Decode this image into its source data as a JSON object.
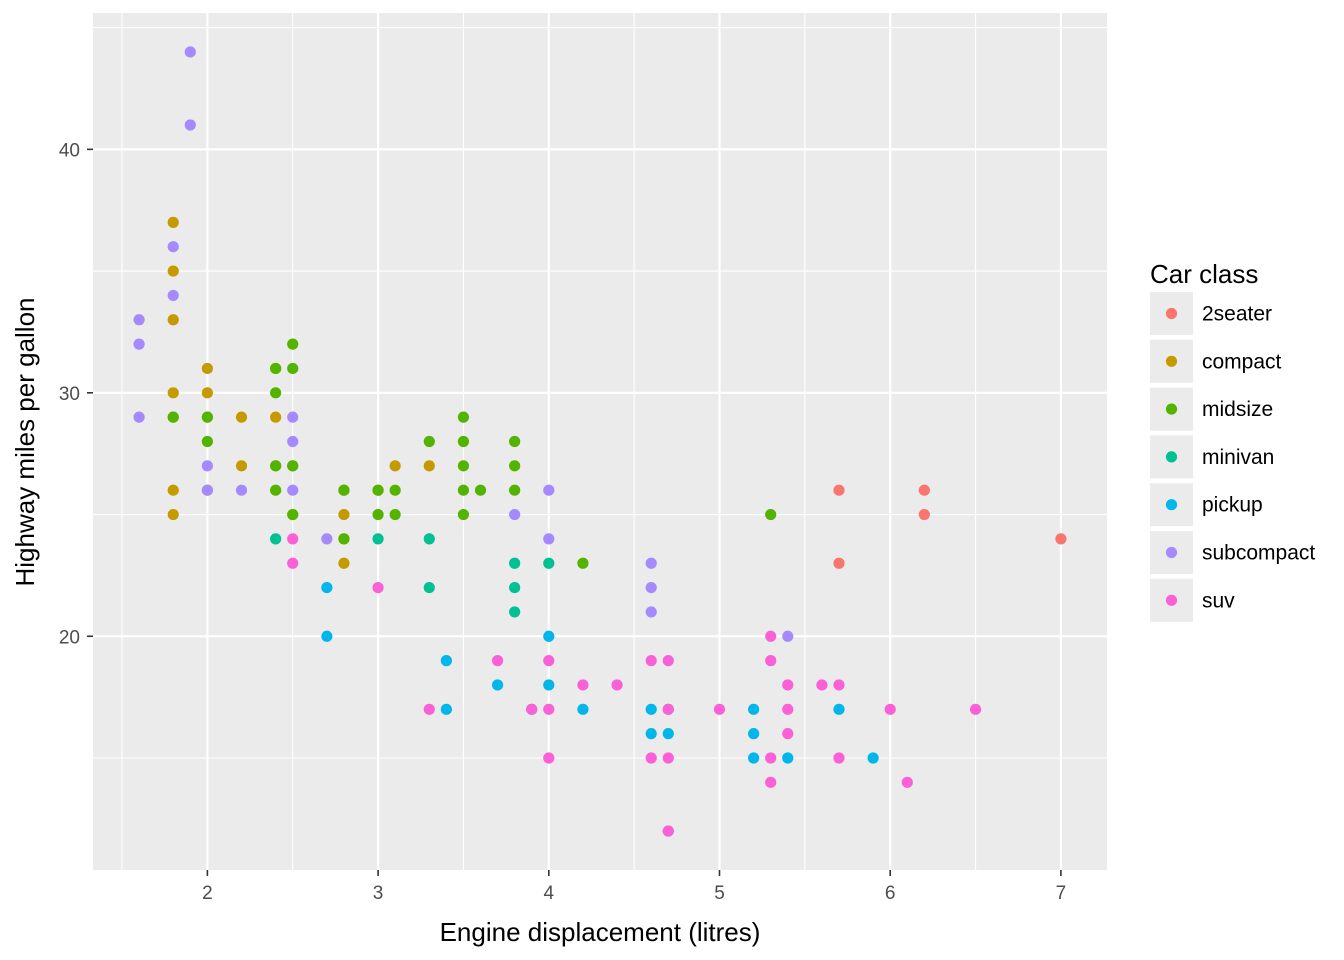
{
  "chart_data": {
    "type": "scatter",
    "xlabel": "Engine displacement (litres)",
    "ylabel": "Highway miles per gallon",
    "xlim": [
      1.33,
      7.27
    ],
    "ylim": [
      10.4,
      45.6
    ],
    "x_ticks": [
      "2",
      "3",
      "4",
      "5",
      "6",
      "7"
    ],
    "y_ticks": [
      "20",
      "30",
      "40"
    ],
    "grid": true,
    "legend": {
      "title": "Car class",
      "position": "right"
    },
    "series": [
      {
        "name": "2seater",
        "color": "#F8766D",
        "points": [
          [
            5.7,
            26
          ],
          [
            5.7,
            23
          ],
          [
            6.2,
            26
          ],
          [
            6.2,
            25
          ],
          [
            7.0,
            24
          ]
        ]
      },
      {
        "name": "compact",
        "color": "#C49A00",
        "points": [
          [
            1.8,
            37
          ],
          [
            1.8,
            35
          ],
          [
            1.8,
            33
          ],
          [
            1.8,
            30
          ],
          [
            1.8,
            29
          ],
          [
            1.8,
            26
          ],
          [
            1.8,
            25
          ],
          [
            2.0,
            31
          ],
          [
            2.0,
            30
          ],
          [
            2.0,
            29
          ],
          [
            2.0,
            26
          ],
          [
            2.2,
            29
          ],
          [
            2.2,
            27
          ],
          [
            2.4,
            31
          ],
          [
            2.4,
            29
          ],
          [
            2.4,
            27
          ],
          [
            2.5,
            27
          ],
          [
            2.5,
            25
          ],
          [
            2.8,
            26
          ],
          [
            2.8,
            25
          ],
          [
            2.8,
            24
          ],
          [
            2.8,
            23
          ],
          [
            3.0,
            26
          ],
          [
            3.1,
            27
          ],
          [
            3.3,
            27
          ]
        ]
      },
      {
        "name": "midsize",
        "color": "#53B400",
        "points": [
          [
            1.8,
            29
          ],
          [
            2.0,
            29
          ],
          [
            2.0,
            28
          ],
          [
            2.4,
            31
          ],
          [
            2.4,
            30
          ],
          [
            2.4,
            27
          ],
          [
            2.4,
            26
          ],
          [
            2.5,
            32
          ],
          [
            2.5,
            31
          ],
          [
            2.5,
            27
          ],
          [
            2.5,
            25
          ],
          [
            2.8,
            26
          ],
          [
            2.8,
            24
          ],
          [
            3.0,
            26
          ],
          [
            3.0,
            25
          ],
          [
            3.1,
            26
          ],
          [
            3.1,
            25
          ],
          [
            3.3,
            28
          ],
          [
            3.5,
            29
          ],
          [
            3.5,
            28
          ],
          [
            3.5,
            27
          ],
          [
            3.5,
            26
          ],
          [
            3.5,
            25
          ],
          [
            3.6,
            26
          ],
          [
            3.8,
            28
          ],
          [
            3.8,
            27
          ],
          [
            3.8,
            26
          ],
          [
            4.2,
            23
          ],
          [
            5.3,
            25
          ]
        ]
      },
      {
        "name": "minivan",
        "color": "#00C094",
        "points": [
          [
            2.4,
            24
          ],
          [
            3.0,
            24
          ],
          [
            3.3,
            24
          ],
          [
            3.3,
            22
          ],
          [
            3.8,
            23
          ],
          [
            3.8,
            22
          ],
          [
            3.8,
            21
          ],
          [
            4.0,
            23
          ]
        ]
      },
      {
        "name": "pickup",
        "color": "#00B6EB",
        "points": [
          [
            2.7,
            22
          ],
          [
            2.7,
            20
          ],
          [
            3.4,
            19
          ],
          [
            3.4,
            17
          ],
          [
            3.7,
            18
          ],
          [
            3.9,
            17
          ],
          [
            4.0,
            20
          ],
          [
            4.0,
            18
          ],
          [
            4.2,
            17
          ],
          [
            4.6,
            17
          ],
          [
            4.6,
            16
          ],
          [
            4.7,
            17
          ],
          [
            4.7,
            16
          ],
          [
            4.7,
            12
          ],
          [
            5.2,
            17
          ],
          [
            5.2,
            16
          ],
          [
            5.2,
            15
          ],
          [
            5.7,
            17
          ],
          [
            5.9,
            15
          ],
          [
            5.4,
            15
          ]
        ]
      },
      {
        "name": "subcompact",
        "color": "#A58AFF",
        "points": [
          [
            1.6,
            33
          ],
          [
            1.6,
            32
          ],
          [
            1.6,
            29
          ],
          [
            1.8,
            36
          ],
          [
            1.8,
            34
          ],
          [
            1.9,
            44
          ],
          [
            1.9,
            41
          ],
          [
            2.0,
            27
          ],
          [
            2.0,
            26
          ],
          [
            2.2,
            26
          ],
          [
            2.5,
            29
          ],
          [
            2.5,
            28
          ],
          [
            2.5,
            26
          ],
          [
            2.7,
            24
          ],
          [
            3.8,
            25
          ],
          [
            4.0,
            26
          ],
          [
            4.0,
            24
          ],
          [
            4.6,
            23
          ],
          [
            4.6,
            22
          ],
          [
            4.6,
            21
          ],
          [
            5.4,
            20
          ]
        ]
      },
      {
        "name": "suv",
        "color": "#FB61D7",
        "points": [
          [
            2.5,
            24
          ],
          [
            2.5,
            23
          ],
          [
            3.0,
            22
          ],
          [
            3.3,
            17
          ],
          [
            3.7,
            19
          ],
          [
            3.9,
            17
          ],
          [
            4.0,
            19
          ],
          [
            4.0,
            17
          ],
          [
            4.0,
            15
          ],
          [
            4.2,
            18
          ],
          [
            4.4,
            18
          ],
          [
            4.6,
            19
          ],
          [
            4.6,
            15
          ],
          [
            4.7,
            19
          ],
          [
            4.7,
            17
          ],
          [
            4.7,
            15
          ],
          [
            4.7,
            12
          ],
          [
            5.0,
            17
          ],
          [
            5.3,
            20
          ],
          [
            5.3,
            19
          ],
          [
            5.3,
            15
          ],
          [
            5.3,
            14
          ],
          [
            5.4,
            18
          ],
          [
            5.4,
            17
          ],
          [
            5.4,
            16
          ],
          [
            5.6,
            18
          ],
          [
            5.7,
            18
          ],
          [
            5.7,
            15
          ],
          [
            6.0,
            17
          ],
          [
            6.1,
            14
          ],
          [
            6.5,
            17
          ]
        ]
      }
    ]
  }
}
